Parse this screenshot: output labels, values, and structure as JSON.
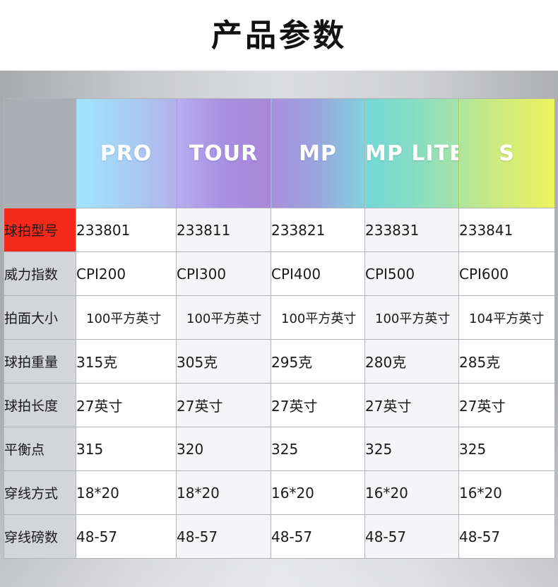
{
  "header": {
    "title": "产品参数"
  },
  "models": [
    "PRO",
    "TOUR",
    "MP",
    "MP LITE",
    "S"
  ],
  "rows": [
    {
      "label": "球拍型号",
      "highlight": true,
      "values": [
        "233801",
        "233811",
        "233821",
        "233831",
        "233841"
      ]
    },
    {
      "label": "威力指数",
      "values": [
        "CPI200",
        "CPI300",
        "CPI400",
        "CPI500",
        "CPI600"
      ]
    },
    {
      "label": "拍面大小",
      "values": [
        "100平方英寸",
        "100平方英寸",
        "100平方英寸",
        "100平方英寸",
        "104平方英寸"
      ]
    },
    {
      "label": "球拍重量",
      "values": [
        "315克",
        "305克",
        "295克",
        "280克",
        "285克"
      ]
    },
    {
      "label": "球拍长度",
      "values": [
        "27英寸",
        "27英寸",
        "27英寸",
        "27英寸",
        "27英寸"
      ]
    },
    {
      "label": "平衡点",
      "values": [
        "315",
        "320",
        "325",
        "325",
        "325"
      ]
    },
    {
      "label": "穿线方式",
      "values": [
        "18*20",
        "18*20",
        "16*20",
        "16*20",
        "16*20"
      ]
    },
    {
      "label": "穿线磅数",
      "values": [
        "48-57",
        "48-57",
        "48-57",
        "48-57",
        "48-57"
      ]
    }
  ],
  "colors": {
    "highlight_label": "#f52a1b",
    "label_bg": "#d3d5d9",
    "border": "#b0b3b8"
  }
}
